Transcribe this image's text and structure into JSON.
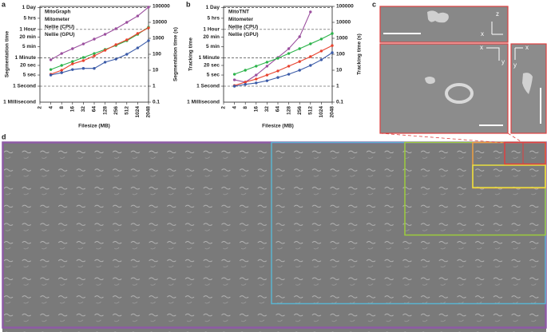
{
  "panel_labels": [
    "a",
    "b",
    "c",
    "d"
  ],
  "chart_data": [
    {
      "type": "line",
      "x": [
        2,
        4,
        8,
        16,
        32,
        64,
        128,
        256,
        512,
        1024,
        2048
      ],
      "xscale": "log2",
      "xlim": [
        2,
        2048
      ],
      "xticks": [
        2,
        4,
        8,
        16,
        32,
        64,
        128,
        256,
        512,
        1024,
        2048
      ],
      "x_label": "Filesize (MB)",
      "y_label": "Segmentation time",
      "yscale": "log",
      "ylim": [
        0.1,
        100000
      ],
      "yticks": [
        {
          "value": 86400,
          "label": "1 Day"
        },
        {
          "value": 18000,
          "label": "5 hrs"
        },
        {
          "value": 3600,
          "label": "1 Hour"
        },
        {
          "value": 1200,
          "label": "20 min"
        },
        {
          "value": 300,
          "label": "5 min"
        },
        {
          "value": 60,
          "label": "1 Minute"
        },
        {
          "value": 20,
          "label": "20 sec"
        },
        {
          "value": 5,
          "label": "5 sec"
        },
        {
          "value": 1,
          "label": "1 Second"
        }
      ],
      "y_bottom_label": "1 Millisecond",
      "y2_label": "Segmentation time (s)",
      "y2lim": [
        0.1,
        100000
      ],
      "y2ticks": [
        0.1,
        1,
        10,
        100,
        1000,
        10000,
        100000
      ],
      "series": [
        {
          "name": "MitoGraph",
          "color": "#9b4f9e",
          "axis": "y2",
          "values": [
            null,
            45,
            112,
            224,
            445,
            890,
            1780,
            4000,
            10000,
            25000,
            90000
          ]
        },
        {
          "name": "Mitometer",
          "color": "#2bb34a",
          "axis": "y2",
          "values": [
            null,
            11,
            20,
            35,
            63,
            112,
            200,
            355,
            710,
            1780,
            5000
          ]
        },
        {
          "name": "Nellie (CPU)",
          "color": "#e8432f",
          "axis": "y2",
          "values": [
            null,
            5.6,
            10,
            25,
            40,
            79,
            178,
            400,
            800,
            2000,
            4500
          ]
        },
        {
          "name": "Nellie (GPU)",
          "color": "#3b5ba8",
          "axis": "y2",
          "values": [
            null,
            5,
            7,
            11,
            13,
            13,
            32,
            50,
            100,
            250,
            710
          ]
        }
      ]
    },
    {
      "type": "line",
      "x": [
        2,
        4,
        8,
        16,
        32,
        64,
        128,
        256,
        512,
        1024,
        2048
      ],
      "xscale": "log2",
      "xlim": [
        2,
        2048
      ],
      "xticks": [
        2,
        4,
        8,
        16,
        32,
        64,
        128,
        256,
        512,
        1024,
        2048
      ],
      "x_label": "Filesize (MB)",
      "y_label": "Tracking time",
      "yscale": "log",
      "ylim": [
        0.1,
        100000
      ],
      "yticks": [
        {
          "value": 86400,
          "label": "1 Day"
        },
        {
          "value": 18000,
          "label": "5 hrs"
        },
        {
          "value": 3600,
          "label": "1 Hour"
        },
        {
          "value": 1200,
          "label": "20 min"
        },
        {
          "value": 300,
          "label": "5 min"
        },
        {
          "value": 60,
          "label": "1 Minute"
        },
        {
          "value": 20,
          "label": "20 sec"
        },
        {
          "value": 5,
          "label": "5 sec"
        },
        {
          "value": 1,
          "label": "1 Second"
        }
      ],
      "y_bottom_label": "1 Millisecond",
      "y2_label": "Tracking time (s)",
      "y2lim": [
        0.1,
        100000
      ],
      "y2ticks": [
        0.1,
        1,
        10,
        100,
        1000,
        10000,
        100000
      ],
      "series": [
        {
          "name": "MitoTNT",
          "color": "#9b4f9e",
          "axis": "y2",
          "values": [
            null,
            2.5,
            1.8,
            5,
            18,
            63,
            224,
            1260,
            45000,
            null,
            null
          ]
        },
        {
          "name": "Mitometer",
          "color": "#2bb34a",
          "axis": "y2",
          "values": [
            null,
            5.6,
            10,
            18,
            32,
            56,
            112,
            224,
            450,
            900,
            2000
          ]
        },
        {
          "name": "Nellie (CPU)",
          "color": "#e8432f",
          "axis": "y2",
          "values": [
            null,
            1.1,
            1.8,
            2.8,
            5,
            9,
            18,
            35,
            71,
            160,
            350
          ]
        },
        {
          "name": "Nellie (GPU)",
          "color": "#3b5ba8",
          "axis": "y2",
          "values": [
            null,
            1,
            1.3,
            1.6,
            2.2,
            3.5,
            5.6,
            10,
            20,
            45,
            126
          ]
        }
      ]
    }
  ],
  "panel_c": {
    "top_axes": [
      "z",
      "x"
    ],
    "bottom_axes": [
      "x",
      "y"
    ],
    "side_axes": [
      "x",
      "y"
    ]
  }
}
